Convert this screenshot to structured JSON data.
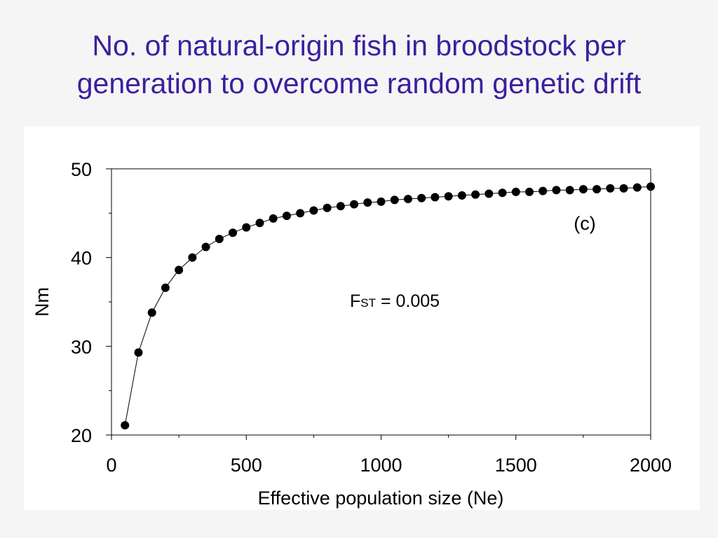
{
  "title": {
    "line1": "No. of natural-origin fish in broodstock per",
    "line2": "generation to overcome random genetic drift"
  },
  "chart_data": {
    "type": "line",
    "xlabel": "Effective population size (Ne)",
    "ylabel": "Nm",
    "xlim": [
      0,
      2000
    ],
    "ylim": [
      20,
      50
    ],
    "x_ticks": [
      "0",
      "500",
      "1000",
      "1500",
      "2000"
    ],
    "y_ticks": [
      "20",
      "30",
      "40",
      "50"
    ],
    "grid": false,
    "markers": "filled-circle",
    "annotations": {
      "panel_label": "(c)",
      "fst_prefix": "F",
      "fst_subscript": "ST",
      "fst_value": " = 0.005"
    },
    "series": [
      {
        "x": [
          50,
          100,
          150,
          200,
          250,
          300,
          350,
          400,
          450,
          500,
          550,
          600,
          650,
          700,
          750,
          800,
          850,
          900,
          950,
          1000,
          1050,
          1100,
          1150,
          1200,
          1250,
          1300,
          1350,
          1400,
          1450,
          1500,
          1550,
          1600,
          1650,
          1700,
          1750,
          1800,
          1850,
          1900,
          1950,
          2000
        ],
        "y": [
          21.1,
          29.3,
          33.8,
          36.6,
          38.6,
          40.0,
          41.2,
          42.1,
          42.8,
          43.4,
          43.9,
          44.4,
          44.7,
          45.0,
          45.3,
          45.6,
          45.8,
          46.0,
          46.2,
          46.3,
          46.5,
          46.6,
          46.7,
          46.8,
          46.9,
          47.0,
          47.1,
          47.2,
          47.3,
          47.4,
          47.4,
          47.5,
          47.6,
          47.6,
          47.7,
          47.7,
          47.8,
          47.8,
          47.9,
          48.0
        ]
      }
    ]
  }
}
